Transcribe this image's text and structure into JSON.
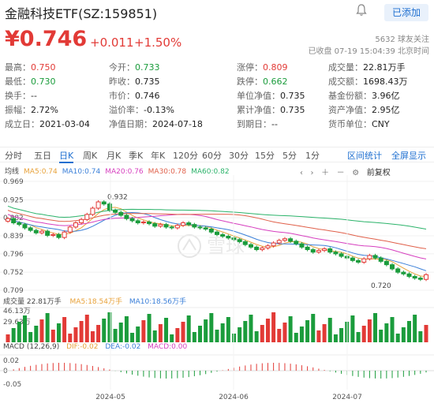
{
  "header": {
    "title": "金融科技ETF(SZ:159851)",
    "follow_label": "已添加"
  },
  "quote": {
    "price": "¥0.746",
    "change": "+0.011",
    "change_pct": "+1.50%",
    "followers": "5632 球友关注",
    "status": "已收盘 07-19 15:04:39 北京时间"
  },
  "stats": [
    [
      [
        "最高：",
        "0.750",
        "red"
      ],
      [
        "今开：",
        "0.733",
        "green"
      ],
      [
        "涨停：",
        "0.809",
        "red"
      ],
      [
        "成交量：",
        "22.81万手",
        "dark"
      ]
    ],
    [
      [
        "最低：",
        "0.730",
        "green"
      ],
      [
        "昨收：",
        "0.735",
        "dark"
      ],
      [
        "跌停：",
        "0.662",
        "green"
      ],
      [
        "成交额：",
        "1698.43万",
        "dark"
      ]
    ],
    [
      [
        "换手：",
        "--",
        "dark"
      ],
      [
        "市价：",
        "0.746",
        "dark"
      ],
      [
        "单位净值：",
        "0.735",
        "dark"
      ],
      [
        "基金份额：",
        "3.96亿",
        "dark"
      ]
    ],
    [
      [
        "振幅：",
        "2.72%",
        "dark"
      ],
      [
        "溢价率：",
        "-0.13%",
        "dark"
      ],
      [
        "累计净值：",
        "0.735",
        "dark"
      ],
      [
        "资产净值：",
        "2.95亿",
        "dark"
      ]
    ],
    [
      [
        "成立日：",
        "2021-03-04",
        "dark"
      ],
      [
        "净值日期：",
        "2024-07-18",
        "dark"
      ],
      [
        "到期日：",
        "--",
        "dark"
      ],
      [
        "货币单位：",
        "CNY",
        "dark"
      ]
    ]
  ],
  "tabs": [
    "分时",
    "五日",
    "日K",
    "周K",
    "月K",
    "季K",
    "年K",
    "120分",
    "60分",
    "30分",
    "15分",
    "5分",
    "1分"
  ],
  "tab_links": [
    "区间统计",
    "全屏显示"
  ],
  "ma": {
    "label": "均线",
    "items": [
      {
        "text": "MA5:0.74",
        "color": "#e8a23a"
      },
      {
        "text": "MA10:0.74",
        "color": "#3a7fd8"
      },
      {
        "text": "MA20:0.76",
        "color": "#d63fbf"
      },
      {
        "text": "MA30:0.78",
        "color": "#e0604a"
      },
      {
        "text": "MA60:0.82",
        "color": "#2bb36a"
      }
    ],
    "adjust_label": "前复权"
  },
  "volume": {
    "label": "成交量 22.81万手",
    "ma5": "MA5:18.54万手",
    "ma10": "MA10:18.56万手",
    "top_tick": "46.13万",
    "mid_tick": "29.63万"
  },
  "macd": {
    "label": "MACD (12,26,9)",
    "dif": "DIF:-0.02",
    "dea": "DEA:-0.02",
    "macd": "MACD:0.00",
    "ticks": [
      "0.02",
      "0",
      "-0.05"
    ]
  },
  "chart_data": {
    "type": "candlestick",
    "y_ticks": [
      "0.969",
      "0.925",
      "0.882",
      "0.839",
      "0.796",
      "0.752",
      "0.709"
    ],
    "x_labels": [
      "2024-05",
      "2024-06",
      "2024-07"
    ],
    "annotations": {
      "high": "0.932",
      "low": "0.720"
    },
    "ylim": [
      0.709,
      0.969
    ]
  }
}
